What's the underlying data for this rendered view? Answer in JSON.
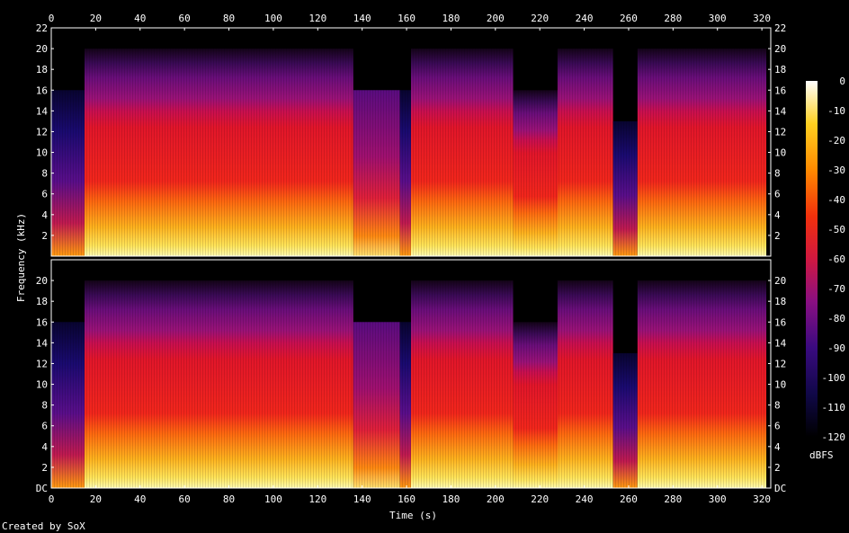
{
  "chart_data": {
    "type": "heatmap",
    "title": "",
    "credit": "Created by SoX",
    "xlabel": "Time (s)",
    "ylabel": "Frequency (kHz)",
    "xlim": [
      0,
      324
    ],
    "x_ticks": [
      0,
      20,
      40,
      60,
      80,
      100,
      120,
      140,
      160,
      180,
      200,
      220,
      240,
      260,
      280,
      300,
      320
    ],
    "ylim": [
      0,
      22
    ],
    "y_ticks": [
      2,
      4,
      6,
      8,
      10,
      12,
      14,
      16,
      18,
      20,
      22
    ],
    "y_bottom_label": "DC",
    "channels": 2,
    "colorbar": {
      "label": "dBFS",
      "range": [
        -120,
        0
      ],
      "ticks": [
        0,
        -10,
        -20,
        -30,
        -40,
        -50,
        -60,
        -70,
        -80,
        -90,
        -100,
        -110,
        -120
      ]
    },
    "segments": [
      {
        "start": 0,
        "end": 15,
        "cutoff_khz": 16,
        "level": "low"
      },
      {
        "start": 15,
        "end": 66,
        "cutoff_khz": 20,
        "level": "high"
      },
      {
        "start": 66,
        "end": 136,
        "cutoff_khz": 20,
        "level": "high"
      },
      {
        "start": 136,
        "end": 157,
        "cutoff_khz": 16,
        "level": "mid"
      },
      {
        "start": 157,
        "end": 162,
        "cutoff_khz": 16,
        "level": "low"
      },
      {
        "start": 162,
        "end": 208,
        "cutoff_khz": 20,
        "level": "high"
      },
      {
        "start": 208,
        "end": 228,
        "cutoff_khz": 16,
        "level": "high"
      },
      {
        "start": 228,
        "end": 253,
        "cutoff_khz": 20,
        "level": "high"
      },
      {
        "start": 253,
        "end": 264,
        "cutoff_khz": 13,
        "level": "low"
      },
      {
        "start": 264,
        "end": 322,
        "cutoff_khz": 20,
        "level": "high"
      }
    ]
  }
}
